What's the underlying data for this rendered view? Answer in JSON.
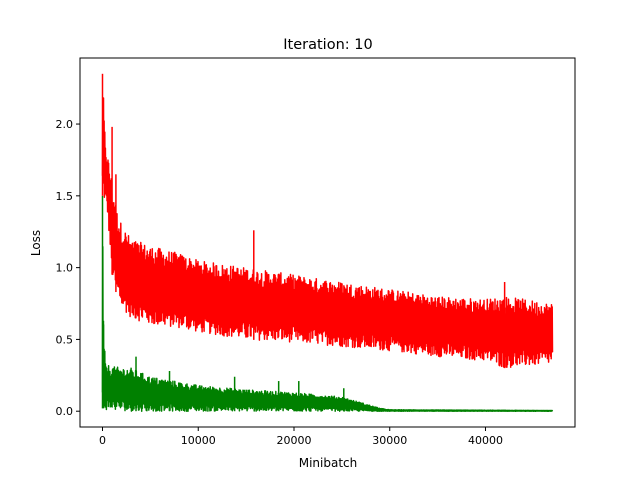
{
  "chart_data": {
    "type": "line",
    "title": "Iteration: 10",
    "xlabel": "Minibatch",
    "ylabel": "Loss",
    "xlim": [
      -2350,
      49350
    ],
    "ylim": [
      -0.11,
      2.46
    ],
    "xticks": [
      0,
      10000,
      20000,
      30000,
      40000
    ],
    "xtick_labels": [
      "0",
      "10000",
      "20000",
      "30000",
      "40000"
    ],
    "yticks": [
      0.0,
      0.5,
      1.0,
      1.5,
      2.0
    ],
    "ytick_labels": [
      "0.0",
      "0.5",
      "1.0",
      "1.5",
      "2.0"
    ],
    "grid": false,
    "series": [
      {
        "name": "red series (envelope)",
        "color": "#ff0000",
        "x": [
          0,
          300,
          500,
          1000,
          1500,
          2000,
          3000,
          5000,
          8000,
          10000,
          15000,
          20000,
          25000,
          30000,
          35000,
          40000,
          42000,
          47000
        ],
        "upper": [
          2.35,
          1.85,
          1.8,
          1.6,
          1.4,
          1.3,
          1.2,
          1.15,
          1.1,
          1.05,
          1.0,
          0.95,
          0.9,
          0.85,
          0.8,
          0.78,
          0.8,
          0.75
        ],
        "lower": [
          1.5,
          1.45,
          1.4,
          0.95,
          0.8,
          0.72,
          0.65,
          0.6,
          0.58,
          0.55,
          0.5,
          0.48,
          0.45,
          0.42,
          0.38,
          0.35,
          0.3,
          0.33
        ],
        "spikes": [
          [
            0,
            2.35
          ],
          [
            1000,
            1.98
          ],
          [
            1400,
            1.65
          ],
          [
            15800,
            1.26
          ],
          [
            42000,
            0.9
          ]
        ]
      },
      {
        "name": "green series (envelope)",
        "color": "#008000",
        "x": [
          0,
          100,
          300,
          1000,
          3000,
          5000,
          10000,
          15000,
          20000,
          25000,
          27000,
          29000,
          30000,
          47000
        ],
        "upper": [
          1.5,
          0.63,
          0.33,
          0.31,
          0.3,
          0.24,
          0.18,
          0.15,
          0.13,
          0.1,
          0.06,
          0.02,
          0.01,
          0.005
        ],
        "lower": [
          0.02,
          0.02,
          0.01,
          0.01,
          0.0,
          0.0,
          0.0,
          0.0,
          0.0,
          0.0,
          0.0,
          0.0,
          0.0,
          0.0
        ],
        "spikes": [
          [
            0,
            1.5
          ],
          [
            100,
            0.63
          ],
          [
            3500,
            0.38
          ],
          [
            7000,
            0.28
          ],
          [
            13800,
            0.24
          ],
          [
            18400,
            0.21
          ],
          [
            20500,
            0.21
          ],
          [
            25200,
            0.16
          ]
        ]
      }
    ]
  }
}
